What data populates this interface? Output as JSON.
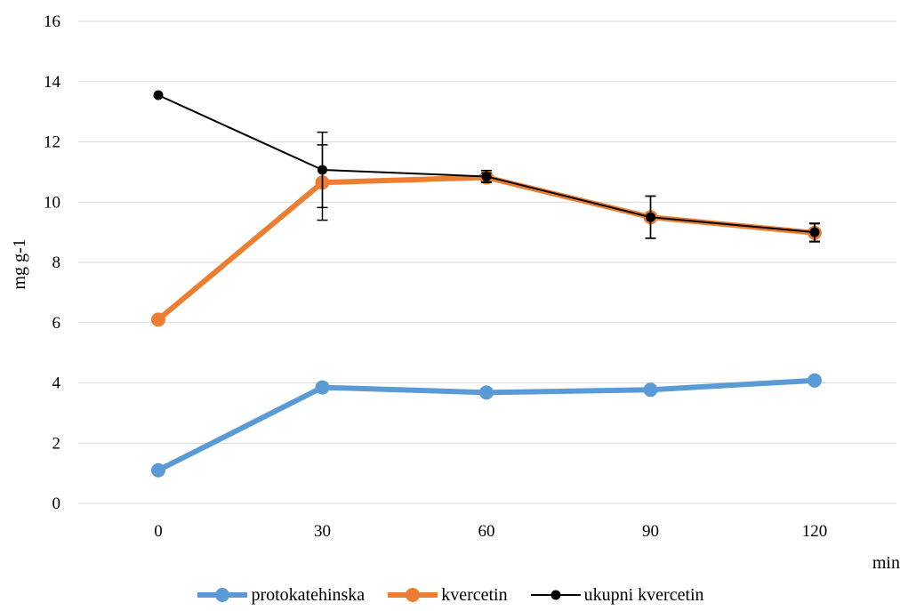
{
  "chart_data": {
    "type": "line",
    "title": "",
    "xlabel": "min",
    "ylabel": "mg g-1",
    "categories": [
      "0",
      "30",
      "60",
      "90",
      "120"
    ],
    "ylim": [
      0,
      16
    ],
    "yticks": [
      0,
      2,
      4,
      6,
      8,
      10,
      12,
      14,
      16
    ],
    "grid": "horizontal",
    "legend": "bottom",
    "series": [
      {
        "name": "protokatehinska",
        "color": "#5b9bd5",
        "values": [
          1.1,
          3.85,
          3.68,
          3.77,
          4.08
        ],
        "errors": [
          0,
          0,
          0,
          0,
          0
        ]
      },
      {
        "name": "kvercetin",
        "color": "#ed7d31",
        "values": [
          6.1,
          10.65,
          10.82,
          9.5,
          8.98
        ],
        "errors": [
          0,
          1.25,
          0.15,
          0.7,
          0.3
        ]
      },
      {
        "name": "ukupni kvercetin",
        "color": "#000000",
        "values": [
          13.55,
          11.07,
          10.85,
          9.5,
          9.0
        ],
        "errors": [
          0,
          1.25,
          0.2,
          0.7,
          0.3
        ]
      }
    ]
  }
}
